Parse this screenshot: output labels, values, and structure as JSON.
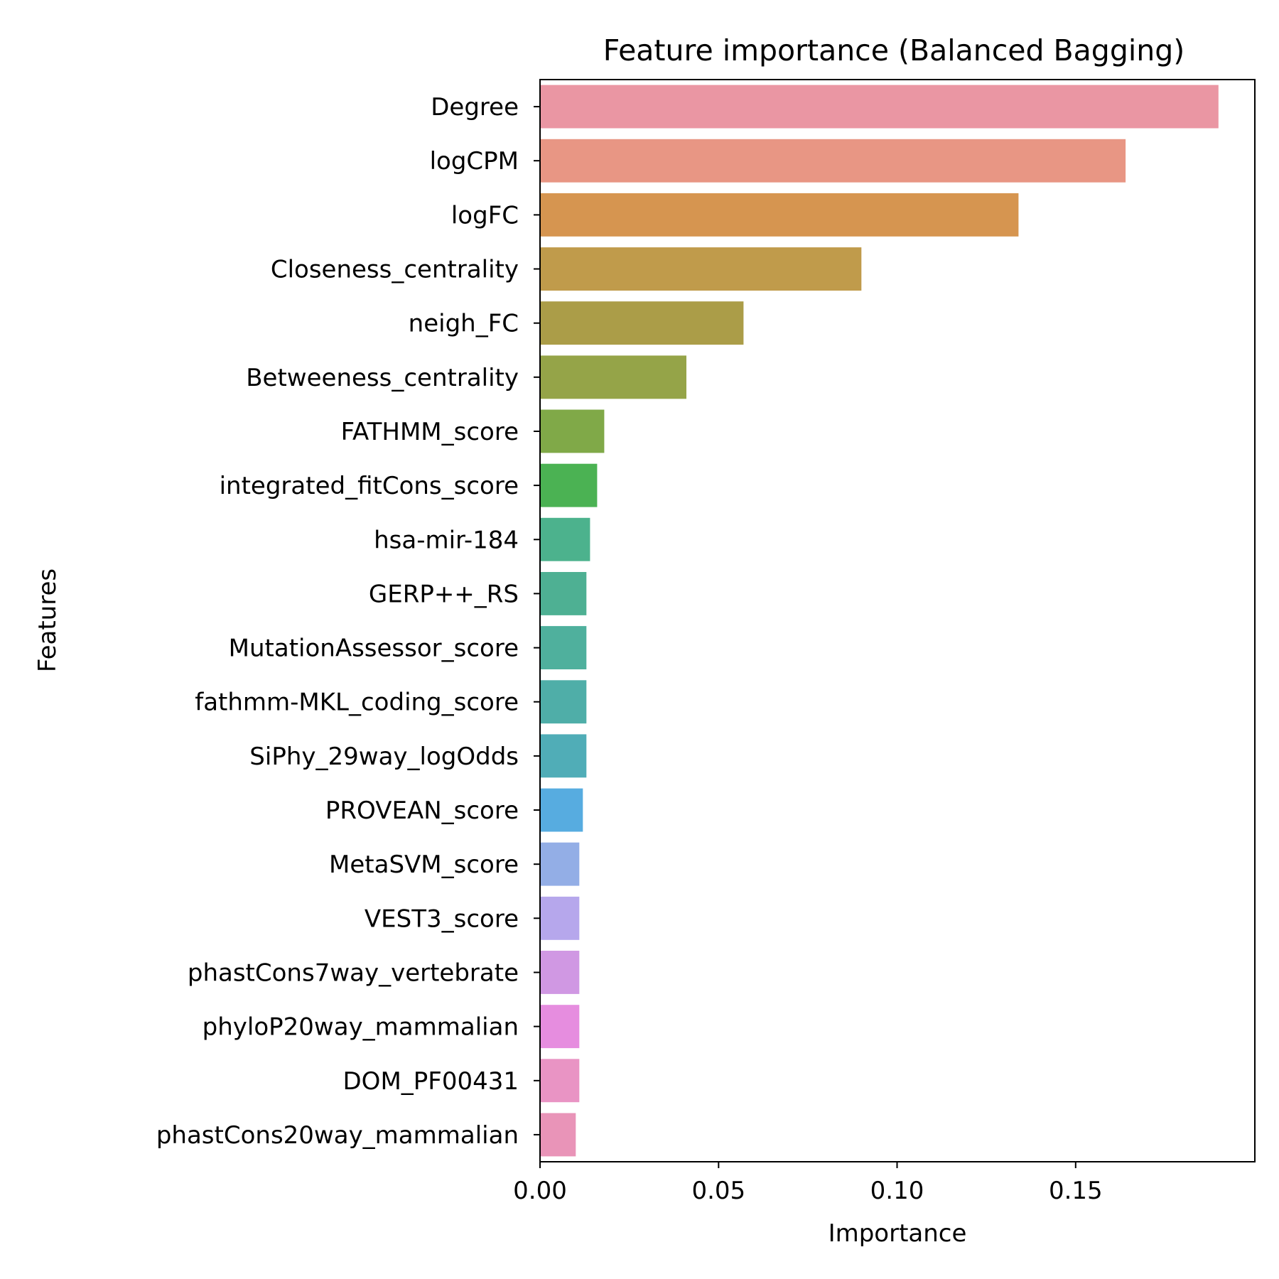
{
  "chart_data": {
    "type": "bar",
    "orientation": "horizontal",
    "title": "Feature importance (Balanced Bagging)",
    "xlabel": "Importance",
    "ylabel": "Features",
    "xlim": [
      0,
      0.2
    ],
    "xticks": [
      "0.00",
      "0.05",
      "0.10",
      "0.15"
    ],
    "xtick_values": [
      0,
      0.05,
      0.1,
      0.15
    ],
    "grid": false,
    "legend": "none",
    "categories": [
      "Degree",
      "logCPM",
      "logFC",
      "Closeness_centrality",
      "neigh_FC",
      "Betweeness_centrality",
      "FATHMM_score",
      "integrated_fitCons_score",
      "hsa-mir-184",
      "GERP++_RS",
      "MutationAssessor_score",
      "fathmm-MKL_coding_score",
      "SiPhy_29way_logOdds",
      "PROVEAN_score",
      "MetaSVM_score",
      "VEST3_score",
      "phastCons7way_vertebrate",
      "phyloP20way_mammalian",
      "DOM_PF00431",
      "phastCons20way_mammalian"
    ],
    "values": [
      0.19,
      0.164,
      0.134,
      0.09,
      0.057,
      0.041,
      0.018,
      0.016,
      0.014,
      0.013,
      0.013,
      0.013,
      0.013,
      0.012,
      0.011,
      0.011,
      0.011,
      0.011,
      0.011,
      0.01
    ],
    "colors": [
      "#ea96a3",
      "#e89684",
      "#d69550",
      "#c09b4b",
      "#ab9d48",
      "#95a448",
      "#80a948",
      "#4bb253",
      "#4cb28d",
      "#4eb093",
      "#4fb09d",
      "#4faea8",
      "#50adb7",
      "#57ace0",
      "#93aee6",
      "#b6a7ec",
      "#d098e3",
      "#e68ddf",
      "#e994c4",
      "#e994b8"
    ]
  }
}
